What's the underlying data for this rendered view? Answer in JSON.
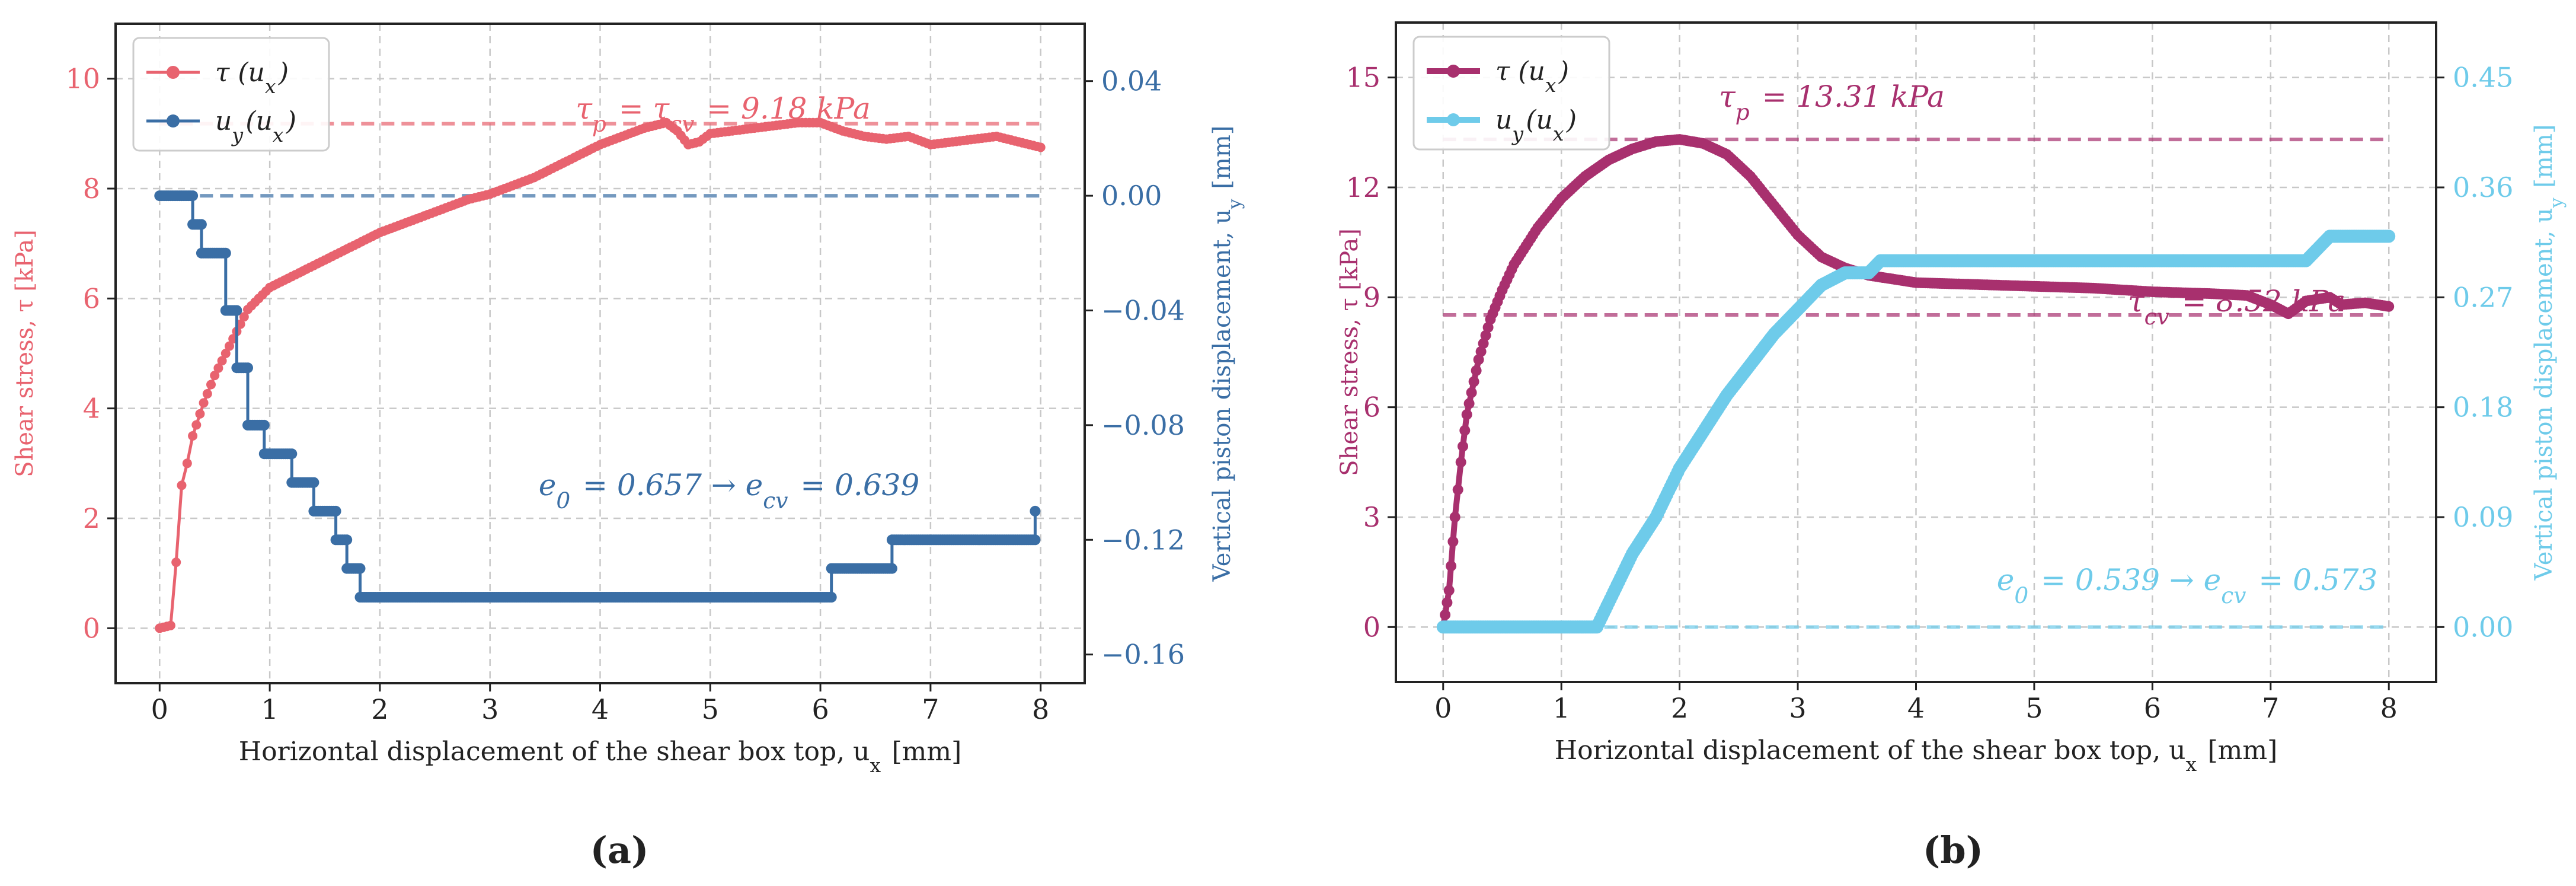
{
  "figure": {
    "subcaption_a": "(a)",
    "subcaption_b": "(b)"
  },
  "chart_data": [
    {
      "type": "line",
      "panel": "a",
      "xlabel": "Horizontal displacement of the shear box top, u_x [mm]",
      "ylabel": "Shear stress, τ [kPa]",
      "y2label": "Vertical piston displacement, u_y [mm]",
      "xlim": [
        -0.4,
        8.4
      ],
      "ylim": [
        -1,
        11
      ],
      "y2lim": [
        -0.17,
        0.06
      ],
      "x_ticks": [
        0,
        1,
        2,
        3,
        4,
        5,
        6,
        7,
        8
      ],
      "y_ticks": [
        0,
        2,
        4,
        6,
        8,
        10
      ],
      "y2_ticks": [
        -0.16,
        -0.12,
        -0.08,
        -0.04,
        0.0,
        0.04
      ],
      "y2_tick_labels": [
        "−0.16",
        "−0.12",
        "−0.08",
        "−0.04",
        "0.00",
        "0.04"
      ],
      "grid": true,
      "legend": {
        "position": "top-left",
        "entries": [
          "τ (u_x)",
          "u_y(u_x)"
        ]
      },
      "colors": {
        "tau": "#e8636f",
        "uy": "#3a6ea5"
      },
      "annotations": [
        {
          "text": "τ_p = τ_cv = 9.18 kPa",
          "series": "tau"
        },
        {
          "text": "e_0 = 0.657 → e_cv = 0.639",
          "series": "uy"
        }
      ],
      "reference_lines": [
        {
          "axis": "y",
          "value": 9.18,
          "series": "tau",
          "x": [
            0,
            8
          ]
        },
        {
          "axis": "y2",
          "value": 0.0,
          "series": "uy",
          "x": [
            0,
            8
          ]
        }
      ],
      "series": [
        {
          "name": "τ (u_x)",
          "axis": "y",
          "x": [
            0,
            0.1,
            0.15,
            0.2,
            0.25,
            0.3,
            0.4,
            0.5,
            0.6,
            0.7,
            0.8,
            0.9,
            1.0,
            1.1,
            1.2,
            1.4,
            1.6,
            1.8,
            2.0,
            2.2,
            2.4,
            2.6,
            2.8,
            3.0,
            3.2,
            3.4,
            3.6,
            3.8,
            4.0,
            4.2,
            4.4,
            4.6,
            4.7,
            4.8,
            4.9,
            5.0,
            5.2,
            5.4,
            5.6,
            5.8,
            6.0,
            6.2,
            6.4,
            6.6,
            6.8,
            7.0,
            7.2,
            7.4,
            7.6,
            7.8,
            8.0
          ],
          "y": [
            0,
            0.05,
            1.2,
            2.6,
            3.0,
            3.5,
            4.1,
            4.6,
            5.0,
            5.4,
            5.8,
            6.0,
            6.2,
            6.3,
            6.4,
            6.6,
            6.8,
            7.0,
            7.2,
            7.35,
            7.5,
            7.65,
            7.8,
            7.9,
            8.05,
            8.2,
            8.4,
            8.6,
            8.8,
            8.95,
            9.1,
            9.2,
            9.05,
            8.8,
            8.85,
            9.0,
            9.05,
            9.1,
            9.15,
            9.2,
            9.2,
            9.05,
            8.95,
            8.9,
            8.95,
            8.8,
            8.85,
            8.9,
            8.95,
            8.85,
            8.75
          ]
        },
        {
          "name": "u_y(u_x)",
          "axis": "y2",
          "step": true,
          "x": [
            0,
            0.3,
            0.3,
            0.38,
            0.38,
            0.6,
            0.6,
            0.7,
            0.7,
            0.8,
            0.8,
            0.95,
            0.95,
            1.2,
            1.2,
            1.4,
            1.4,
            1.6,
            1.6,
            1.7,
            1.7,
            1.82,
            1.82,
            6.1,
            6.1,
            6.65,
            6.65,
            7.95,
            7.95
          ],
          "y": [
            0.0,
            0.0,
            -0.01,
            -0.01,
            -0.02,
            -0.02,
            -0.04,
            -0.04,
            -0.06,
            -0.06,
            -0.08,
            -0.08,
            -0.09,
            -0.09,
            -0.1,
            -0.1,
            -0.11,
            -0.11,
            -0.12,
            -0.12,
            -0.13,
            -0.13,
            -0.14,
            -0.14,
            -0.13,
            -0.13,
            -0.12,
            -0.12,
            -0.11
          ]
        }
      ]
    },
    {
      "type": "line",
      "panel": "b",
      "xlabel": "Horizontal displacement of the shear box top, u_x [mm]",
      "ylabel": "Shear stress, τ [kPa]",
      "y2label": "Vertical piston displacement, u_y [mm]",
      "xlim": [
        -0.4,
        8.4
      ],
      "ylim": [
        -1.5,
        16.5
      ],
      "y2lim": [
        -0.045,
        0.495
      ],
      "x_ticks": [
        0,
        1,
        2,
        3,
        4,
        5,
        6,
        7,
        8
      ],
      "y_ticks": [
        0,
        3,
        6,
        9,
        12,
        15
      ],
      "y2_ticks": [
        0.0,
        0.09,
        0.18,
        0.27,
        0.36,
        0.45
      ],
      "y2_tick_labels": [
        "0.00",
        "0.09",
        "0.18",
        "0.27",
        "0.36",
        "0.45"
      ],
      "grid": true,
      "legend": {
        "position": "top-left",
        "entries": [
          "τ (u_x)",
          "u_y(u_x)"
        ]
      },
      "colors": {
        "tau": "#a8306e",
        "uy": "#6ecbea"
      },
      "annotations": [
        {
          "text": "τ_p = 13.31 kPa",
          "series": "tau"
        },
        {
          "text": "τ_cv = 8.52 kPa",
          "series": "tau"
        },
        {
          "text": "e_0 = 0.539 → e_cv = 0.573",
          "series": "uy"
        }
      ],
      "reference_lines": [
        {
          "axis": "y",
          "value": 13.31,
          "series": "tau",
          "x": [
            0,
            8
          ]
        },
        {
          "axis": "y",
          "value": 8.52,
          "series": "tau",
          "x": [
            0,
            8
          ]
        },
        {
          "axis": "y2",
          "value": 0.0,
          "series": "uy",
          "x": [
            0,
            8
          ]
        }
      ],
      "series": [
        {
          "name": "τ (u_x)",
          "axis": "y",
          "x": [
            0,
            0.05,
            0.1,
            0.15,
            0.2,
            0.3,
            0.4,
            0.5,
            0.6,
            0.8,
            1.0,
            1.2,
            1.4,
            1.6,
            1.8,
            2.0,
            2.2,
            2.4,
            2.6,
            2.8,
            3.0,
            3.2,
            3.4,
            3.6,
            3.8,
            4.0,
            4.5,
            5.0,
            5.5,
            6.0,
            6.5,
            6.8,
            7.0,
            7.15,
            7.3,
            7.5,
            7.6,
            7.8,
            8.0
          ],
          "y": [
            0,
            1.0,
            3.0,
            4.5,
            5.8,
            7.3,
            8.4,
            9.2,
            9.9,
            10.9,
            11.7,
            12.3,
            12.75,
            13.05,
            13.25,
            13.31,
            13.2,
            12.9,
            12.3,
            11.5,
            10.7,
            10.1,
            9.8,
            9.6,
            9.5,
            9.4,
            9.35,
            9.3,
            9.25,
            9.15,
            9.1,
            9.05,
            8.8,
            8.55,
            8.9,
            9.0,
            8.8,
            8.85,
            8.75
          ]
        },
        {
          "name": "u_y(u_x)",
          "axis": "y2",
          "x": [
            0,
            1.3,
            1.4,
            1.5,
            1.6,
            1.8,
            2.0,
            2.2,
            2.4,
            2.6,
            2.8,
            3.0,
            3.2,
            3.4,
            3.6,
            3.7,
            4.0,
            5.0,
            6.0,
            7.0,
            7.3,
            7.4,
            7.5,
            8.0
          ],
          "y": [
            0.0,
            0.0,
            0.02,
            0.04,
            0.06,
            0.09,
            0.13,
            0.16,
            0.19,
            0.215,
            0.24,
            0.26,
            0.28,
            0.29,
            0.29,
            0.3,
            0.3,
            0.3,
            0.3,
            0.3,
            0.3,
            0.31,
            0.32,
            0.32
          ]
        }
      ]
    }
  ]
}
